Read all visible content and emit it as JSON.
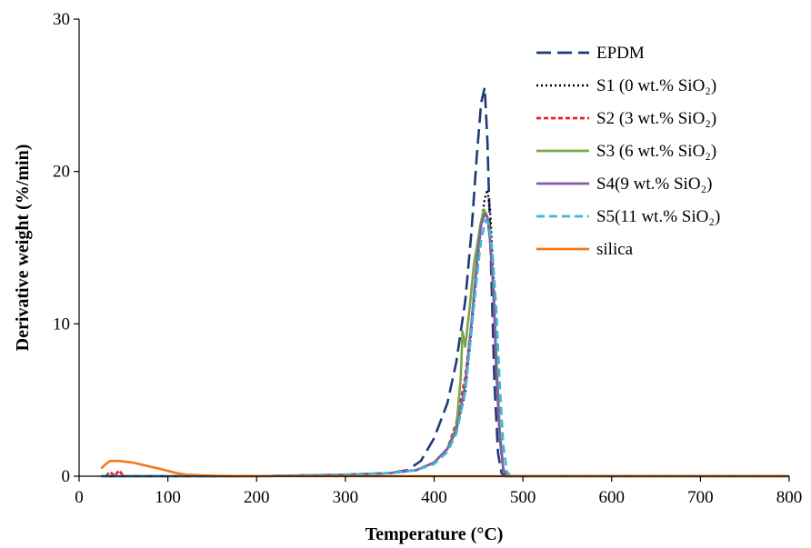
{
  "chart_data": {
    "type": "line",
    "title": "",
    "xlabel": "Temperature (°C)",
    "ylabel": "Derivative weight (%/min)",
    "xlim": [
      0,
      800
    ],
    "ylim": [
      0,
      30
    ],
    "xticks": [
      "0",
      "100",
      "200",
      "300",
      "400",
      "500",
      "600",
      "700",
      "800"
    ],
    "yticks": [
      "0",
      "10",
      "20",
      "30"
    ],
    "grid": false,
    "legend_position": "top-right",
    "series": [
      {
        "name": "EPDM",
        "color": "#1f3a78",
        "dash": "long-dash",
        "x": [
          25,
          100,
          200,
          300,
          350,
          370,
          385,
          400,
          415,
          425,
          435,
          442,
          448,
          453,
          457,
          460,
          464,
          468,
          472,
          476,
          480,
          500,
          800
        ],
        "y": [
          0,
          0,
          0,
          0.1,
          0.2,
          0.4,
          1.0,
          2.5,
          4.8,
          7.5,
          11.5,
          16,
          21,
          24.5,
          25.5,
          22,
          14,
          6,
          1.5,
          0.2,
          0,
          0,
          0
        ]
      },
      {
        "name": "S1 (0 wt.% SiO₂)",
        "color": "#000000",
        "dash": "dotted",
        "x": [
          25,
          100,
          200,
          300,
          350,
          380,
          400,
          415,
          425,
          435,
          442,
          448,
          453,
          457,
          460,
          463,
          467,
          470,
          474,
          478,
          482,
          500,
          800
        ],
        "y": [
          0,
          0,
          0,
          0.1,
          0.2,
          0.4,
          0.9,
          1.8,
          3.0,
          5.5,
          9.5,
          13.5,
          16.5,
          18.2,
          18.8,
          17.5,
          13,
          8,
          3,
          0.5,
          0,
          0,
          0
        ]
      },
      {
        "name": "S2 (3 wt.% SiO₂)",
        "color": "#e8202a",
        "dash": "short-dash",
        "x": [
          30,
          35,
          40,
          45,
          50,
          100,
          200,
          300,
          350,
          380,
          400,
          415,
          425,
          435,
          442,
          448,
          453,
          457,
          460,
          463,
          467,
          470,
          474,
          478,
          482,
          500,
          800
        ],
        "y": [
          0,
          0.3,
          0,
          0.4,
          0,
          0,
          0,
          0.1,
          0.2,
          0.4,
          0.9,
          1.8,
          3.5,
          6.5,
          10,
          14,
          16.5,
          17.2,
          17,
          15.5,
          12,
          7,
          2.5,
          0.4,
          0,
          0,
          0
        ]
      },
      {
        "name": "S3 (6 wt.% SiO₂)",
        "color": "#77a846",
        "dash": "solid",
        "x": [
          25,
          100,
          200,
          300,
          350,
          380,
          400,
          415,
          425,
          430,
          432,
          435,
          440,
          445,
          448,
          452,
          456,
          459,
          462,
          466,
          470,
          474,
          478,
          482,
          500,
          800
        ],
        "y": [
          0,
          0,
          0,
          0.1,
          0.2,
          0.4,
          0.9,
          1.8,
          3.2,
          6.5,
          9.5,
          8.5,
          11,
          14,
          15,
          16.5,
          17.5,
          17.2,
          16.5,
          13,
          8,
          3,
          0.5,
          0,
          0,
          0
        ]
      },
      {
        "name": "S4(9 wt.% SiO₂)",
        "color": "#7f5ea6",
        "dash": "solid",
        "x": [
          25,
          100,
          200,
          300,
          350,
          380,
          400,
          415,
          425,
          435,
          442,
          448,
          453,
          457,
          460,
          463,
          467,
          470,
          474,
          478,
          482,
          500,
          800
        ],
        "y": [
          0,
          0,
          0,
          0.1,
          0.2,
          0.4,
          0.9,
          1.8,
          3.0,
          6.0,
          10,
          14,
          16.5,
          17.2,
          17,
          15.5,
          12,
          7,
          2.5,
          0.4,
          0,
          0,
          0
        ]
      },
      {
        "name": "S5(11 wt.% SiO₂)",
        "color": "#3fb7d6",
        "dash": "dash",
        "x": [
          25,
          100,
          200,
          300,
          350,
          380,
          400,
          415,
          425,
          435,
          442,
          448,
          453,
          458,
          462,
          466,
          470,
          474,
          478,
          482,
          486,
          500,
          800
        ],
        "y": [
          0,
          0,
          0,
          0.1,
          0.2,
          0.4,
          0.8,
          1.6,
          2.8,
          5.5,
          9.5,
          13,
          15.5,
          16.8,
          16.5,
          14.5,
          11,
          6,
          2,
          0.3,
          0,
          0,
          0
        ]
      },
      {
        "name": "silica",
        "color": "#f07a1a",
        "dash": "solid",
        "x": [
          25,
          30,
          35,
          45,
          60,
          75,
          90,
          100,
          110,
          120,
          140,
          160,
          200,
          300,
          400,
          500,
          600,
          700,
          800
        ],
        "y": [
          0.5,
          0.8,
          1.0,
          1.0,
          0.9,
          0.7,
          0.5,
          0.35,
          0.2,
          0.1,
          0.05,
          0.02,
          0,
          0,
          0,
          0,
          0,
          0,
          0
        ]
      }
    ]
  }
}
